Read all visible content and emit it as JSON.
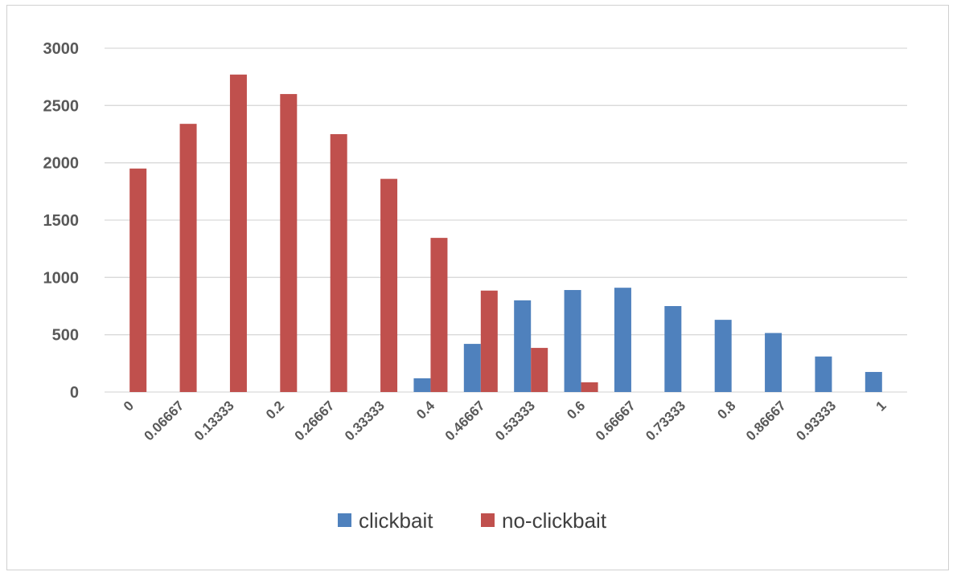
{
  "chart_data": {
    "type": "bar",
    "categories": [
      "0",
      "0.06667",
      "0.13333",
      "0.2",
      "0.26667",
      "0.33333",
      "0.4",
      "0.46667",
      "0.53333",
      "0.6",
      "0.66667",
      "0.73333",
      "0.8",
      "0.86667",
      "0.93333",
      "1"
    ],
    "series": [
      {
        "name": "clickbait",
        "color": "#4f81bd",
        "values": [
          0,
          0,
          0,
          0,
          0,
          0,
          120,
          420,
          800,
          890,
          910,
          750,
          630,
          515,
          310,
          175
        ]
      },
      {
        "name": "no-clickbait",
        "color": "#c0504d",
        "values": [
          1950,
          2340,
          2770,
          2600,
          2250,
          1860,
          1345,
          885,
          385,
          85,
          0,
          0,
          0,
          0,
          0,
          0
        ]
      }
    ],
    "yticks": [
      "0",
      "500",
      "1000",
      "1500",
      "2000",
      "2500",
      "3000"
    ],
    "ylim": [
      0,
      3000
    ],
    "grid": true,
    "legend_position": "bottom"
  }
}
